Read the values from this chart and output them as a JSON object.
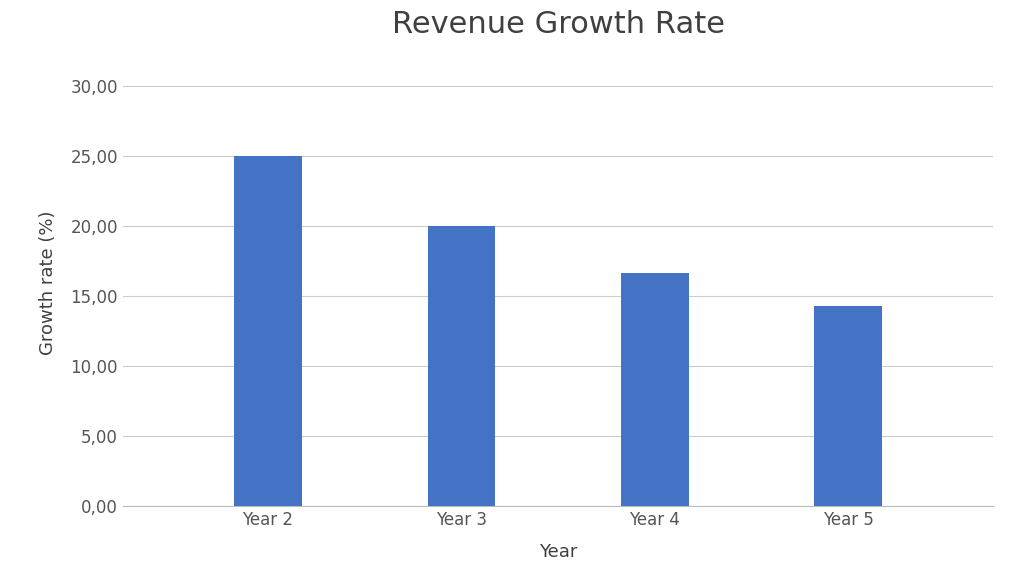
{
  "title": "Revenue Growth Rate",
  "categories": [
    "Year 2",
    "Year 3",
    "Year 4",
    "Year 5"
  ],
  "values": [
    25.0,
    20.0,
    16.67,
    14.29
  ],
  "bar_color": "#4472C4",
  "xlabel": "Year",
  "ylabel": "Growth rate (%)",
  "ylim": [
    0,
    32
  ],
  "yticks": [
    0,
    5,
    10,
    15,
    20,
    25,
    30
  ],
  "ytick_labels": [
    "0,00",
    "5,00",
    "10,00",
    "15,00",
    "20,00",
    "25,00",
    "30,00"
  ],
  "background_color": "#ffffff",
  "title_fontsize": 22,
  "axis_label_fontsize": 13,
  "tick_fontsize": 12,
  "grid_color": "#cccccc",
  "bar_width": 0.35
}
